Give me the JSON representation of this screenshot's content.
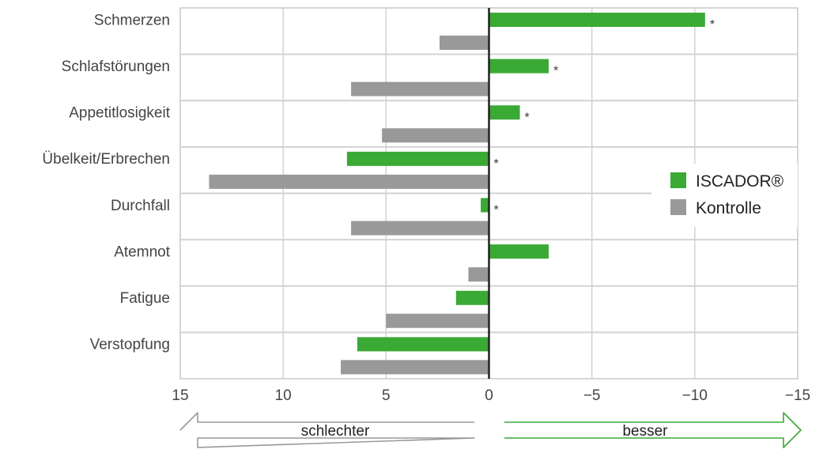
{
  "chart_data": {
    "type": "bar",
    "orientation": "horizontal",
    "categories": [
      "Schmerzen",
      "Schlafstörungen",
      "Appetitlosigkeit",
      "Übelkeit/Erbrechen",
      "Durchfall",
      "Atemnot",
      "Fatigue",
      "Verstopfung"
    ],
    "series": [
      {
        "name": "ISCADOR®",
        "color": "#3aaa35",
        "values": [
          -10.5,
          -2.9,
          -1.5,
          6.9,
          0.4,
          -2.9,
          1.6,
          6.4
        ]
      },
      {
        "name": "Kontrolle",
        "color": "#999999",
        "values": [
          2.4,
          6.7,
          5.2,
          13.6,
          6.7,
          1.0,
          5.0,
          7.2
        ]
      }
    ],
    "significance_marks": [
      "*",
      "*",
      "*",
      "*",
      "*",
      "",
      "",
      ""
    ],
    "xlim": [
      15,
      -15
    ],
    "xticks": [
      15,
      10,
      5,
      0,
      -5,
      -10,
      -15
    ],
    "xtick_labels": [
      "15",
      "10",
      "5",
      "0",
      "−5",
      "−10",
      "−15"
    ],
    "grid": true,
    "legend_position": "right",
    "arrows": {
      "left_label": "schlechter",
      "right_label": "besser",
      "left_color": "#999999",
      "right_color": "#3aaa35"
    }
  }
}
